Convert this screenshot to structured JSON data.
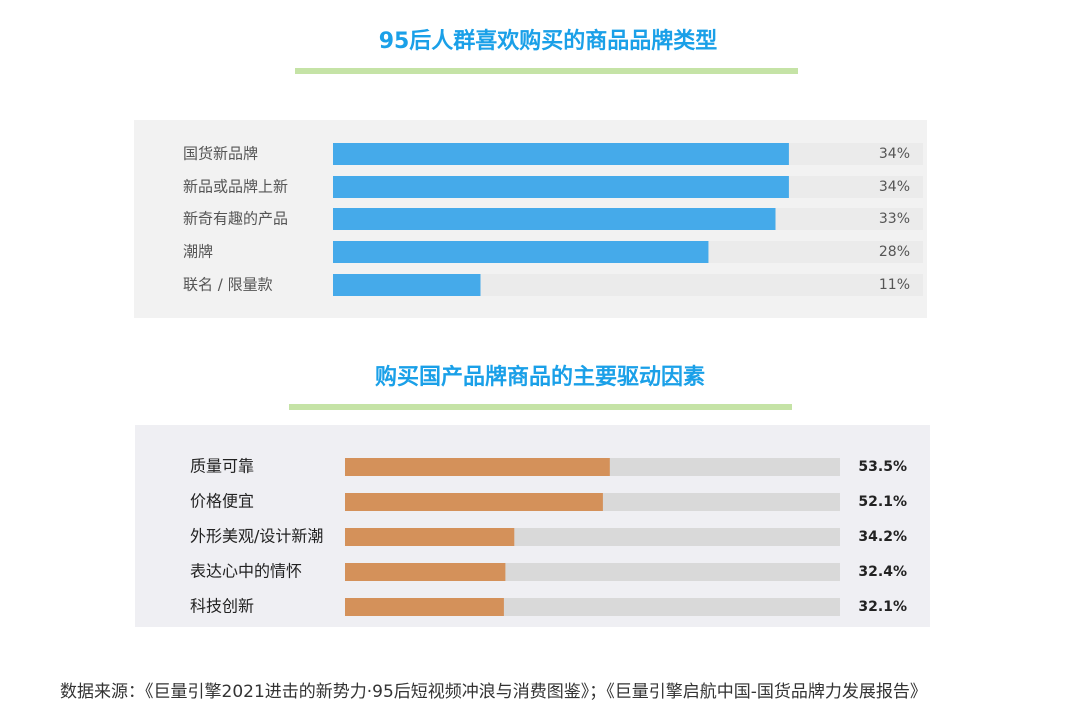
{
  "chart_data": [
    {
      "type": "bar",
      "orientation": "horizontal",
      "title": "95后人群喜欢购买的商品品牌类型",
      "categories": [
        "国货新品牌",
        "新品或品牌上新",
        "新奇有趣的产品",
        "潮牌",
        "联名 / 限量款"
      ],
      "values": [
        34,
        34,
        33,
        28,
        11
      ],
      "value_labels": [
        "34%",
        "34%",
        "33%",
        "28%",
        "11%"
      ],
      "color": "#45aaea",
      "xlim": [
        0,
        44
      ]
    },
    {
      "type": "bar",
      "orientation": "horizontal",
      "title": "购买国产品牌商品的主要驱动因素",
      "categories": [
        "质量可靠",
        "价格便宜",
        "外形美观/设计新潮",
        "表达心中的情怀",
        "科技创新"
      ],
      "values": [
        53.5,
        52.1,
        34.2,
        32.4,
        32.1
      ],
      "value_labels": [
        "53.5%",
        "52.1%",
        "34.2%",
        "32.4%",
        "32.1%"
      ],
      "color": "#d4915a",
      "xlim": [
        0,
        100
      ]
    }
  ],
  "source": "数据来源：《巨量引擎2021进击的新势力·95后短视频冲浪与消费图鉴》；《巨量引擎启航中国-国货品牌力发展报告》"
}
